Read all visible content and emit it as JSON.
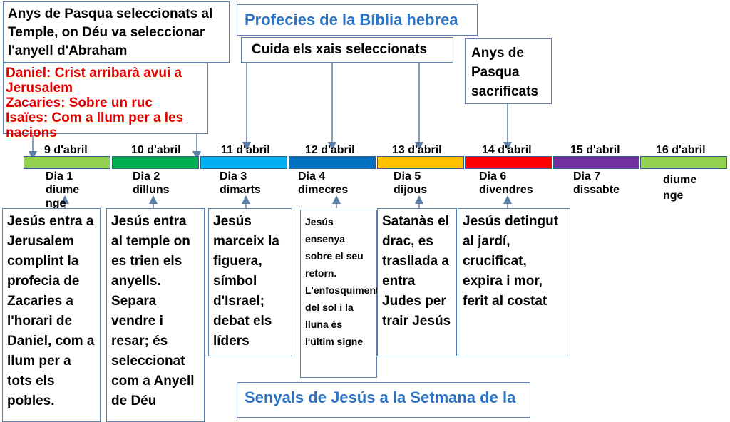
{
  "title_top": "Profecies de la Bíblia hebrea",
  "title_bottom": "Senyals de Jesús a la Setmana de la",
  "top_notes": {
    "pasqua_temple": "Anys de Pasqua seleccionats al Temple, on Déu va seleccionar l'anyell d'Abraham",
    "cuida_xais": "Cuida els xais seleccionats",
    "anys_pasqua": "Anys de Pasqua sacrificats"
  },
  "prophecies": [
    "Daniel: Crist arribarà avui a Jerusalem",
    "Zacaries: Sobre un ruc",
    "Isaïes: Com a llum per a les nacions"
  ],
  "timeline": [
    {
      "date": "9 d'abril",
      "day": "Dia 1",
      "dayname": "diume nge",
      "color": "#92d050"
    },
    {
      "date": "10 d'abril",
      "day": "Dia 2",
      "dayname": "dilluns",
      "color": "#00b050"
    },
    {
      "date": "11 d'abril",
      "day": "Dia 3",
      "dayname": "dimarts",
      "color": "#00b0f0"
    },
    {
      "date": "12 d'abril",
      "day": "Dia 4",
      "dayname": "dimecres",
      "color": "#0070c0"
    },
    {
      "date": "13 d'abril",
      "day": "Dia 5",
      "dayname": "dijous",
      "color": "#ffc000"
    },
    {
      "date": "14 d'abril",
      "day": "Dia 6",
      "dayname": "divendres",
      "color": "#ff0000"
    },
    {
      "date": "15 d'abril",
      "day": "Dia 7",
      "dayname": "dissabte",
      "color": "#7030a0"
    },
    {
      "date": "16 d'abril",
      "day": "",
      "dayname": "diume nge",
      "color": "#92d050"
    }
  ],
  "events": [
    "Jesús entra a Jerusalem complint la profecia de Zacaries a l'horari de Daniel, com a llum per a tots els pobles.",
    "Jesús entra al temple on es trien els anyells. Separa vendre i resar; és seleccionat com a Anyell de Déu",
    "Jesús marceix la figuera, símbol d'Israel; debat els líders",
    "Jesús ensenya sobre el seu retorn. L'enfosquiment del sol i la lluna és l'últim signe",
    "Satanàs el drac, es trasllada a entra Judes per trair Jesús",
    "Jesús detingut al jardí, crucificat, expira i mor, ferit al costat"
  ]
}
